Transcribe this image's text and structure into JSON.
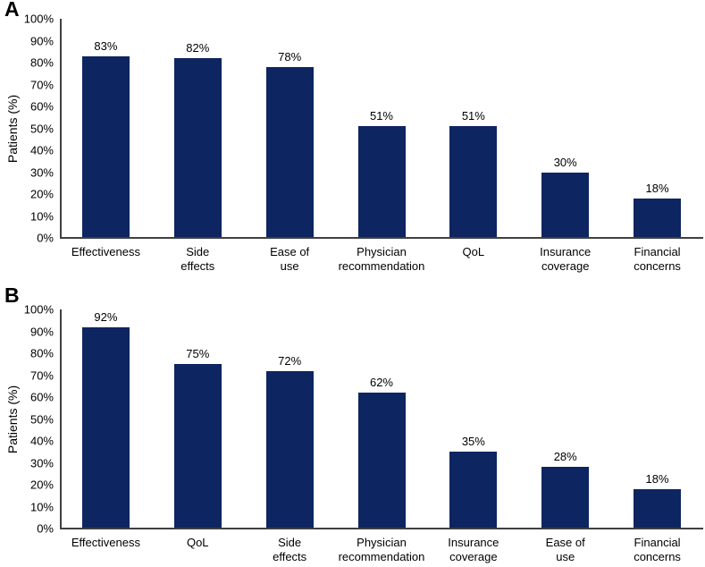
{
  "figure": {
    "background": "#ffffff",
    "bar_color": "#0d2560",
    "axis_color": "#404040",
    "text_color": "#000000"
  },
  "chart_data": [
    {
      "type": "bar",
      "panel_label": "A",
      "title": "",
      "xlabel": "",
      "ylabel": "Patients (%)",
      "ylim": [
        0,
        100
      ],
      "ytick_step": 10,
      "yticks": [
        "100%",
        "90%",
        "80%",
        "70%",
        "60%",
        "50%",
        "40%",
        "30%",
        "20%",
        "10%",
        "0%"
      ],
      "grid": false,
      "legend": "none",
      "categories": [
        "Effectiveness",
        "Side effects",
        "Ease of use",
        "Physician recommendation",
        "QoL",
        "Insurance coverage",
        "Financial concerns"
      ],
      "categories_display": [
        [
          "Effectiveness"
        ],
        [
          "Side",
          "effects"
        ],
        [
          "Ease of",
          "use"
        ],
        [
          "Physician",
          "recommendation"
        ],
        [
          "QoL"
        ],
        [
          "Insurance",
          "coverage"
        ],
        [
          "Financial",
          "concerns"
        ]
      ],
      "values": [
        83,
        82,
        78,
        51,
        51,
        30,
        18
      ],
      "data_labels": [
        "83%",
        "82%",
        "78%",
        "51%",
        "51%",
        "30%",
        "18%"
      ]
    },
    {
      "type": "bar",
      "panel_label": "B",
      "title": "",
      "xlabel": "",
      "ylabel": "Patients (%)",
      "ylim": [
        0,
        100
      ],
      "ytick_step": 10,
      "yticks": [
        "100%",
        "90%",
        "80%",
        "70%",
        "60%",
        "50%",
        "40%",
        "30%",
        "20%",
        "10%",
        "0%"
      ],
      "grid": false,
      "legend": "none",
      "categories": [
        "Effectiveness",
        "QoL",
        "Side effects",
        "Physician recommendation",
        "Insurance coverage",
        "Ease of use",
        "Financial concerns"
      ],
      "categories_display": [
        [
          "Effectiveness"
        ],
        [
          "QoL"
        ],
        [
          "Side",
          "effects"
        ],
        [
          "Physician",
          "recommendation"
        ],
        [
          "Insurance",
          "coverage"
        ],
        [
          "Ease of",
          "use"
        ],
        [
          "Financial",
          "concerns"
        ]
      ],
      "values": [
        92,
        75,
        72,
        62,
        35,
        28,
        18
      ],
      "data_labels": [
        "92%",
        "75%",
        "72%",
        "62%",
        "35%",
        "28%",
        "18%"
      ]
    }
  ]
}
